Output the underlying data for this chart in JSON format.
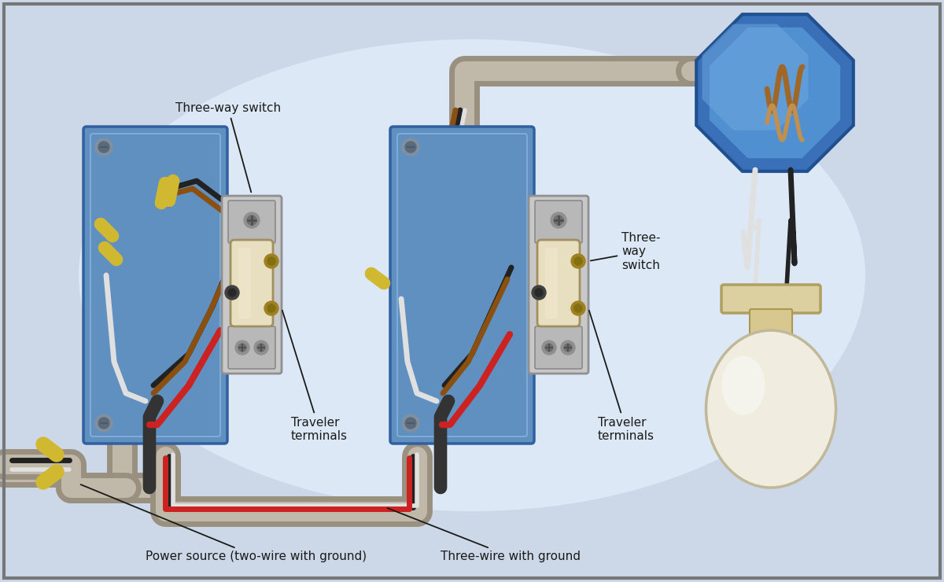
{
  "bg_color": "#ccd8e8",
  "border_color": "#777777",
  "labels": {
    "three_way_switch_1": "Three-way switch",
    "three_way_switch_2": "Three-\nway\nswitch",
    "traveler_terminals_1": "Traveler\nterminals",
    "traveler_terminals_2": "Traveler\nterminals",
    "power_source": "Power source (two-wire with ground)",
    "three_wire": "Three-wire with ground"
  },
  "box1_color": "#6090c0",
  "box2_color": "#6090c0",
  "junction_box_color": "#4070b0",
  "switch_body_color": "#e8dfc0",
  "wire_black": "#222222",
  "wire_white": "#e0e0e0",
  "wire_red": "#cc2222",
  "wire_brown": "#8B5010",
  "wire_yellow_tip": "#d0b830",
  "conduit_outer": "#9a9080",
  "conduit_inner": "#c0b8a8"
}
